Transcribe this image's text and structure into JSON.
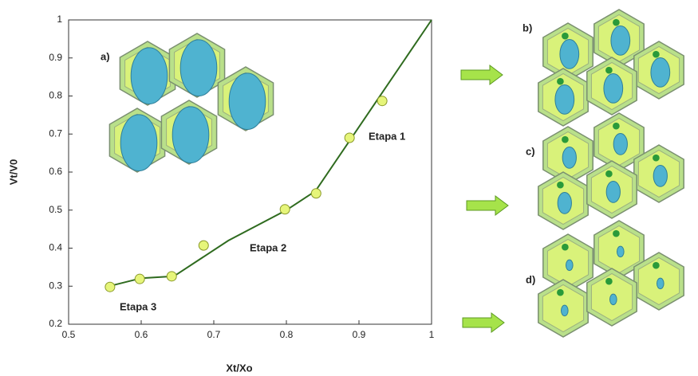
{
  "chart_data": {
    "type": "scatter",
    "x_label": "Xt/Xo",
    "y_label": "Vt/V0",
    "x": [
      0.557,
      0.598,
      0.642,
      0.686,
      0.798,
      0.841,
      0.887,
      0.932
    ],
    "y": [
      0.298,
      0.319,
      0.326,
      0.407,
      0.502,
      0.544,
      0.69,
      0.787
    ],
    "color": "#e6f57a",
    "fit": {
      "x": [
        0.56,
        0.6,
        0.645,
        0.72,
        0.8,
        0.84,
        1
      ],
      "y": [
        0.302,
        0.321,
        0.326,
        0.42,
        0.5,
        0.55,
        1
      ],
      "color": "#2f6b1f"
    },
    "xlim": [
      0.5,
      1
    ],
    "xticks": [
      0.5,
      0.6,
      0.7,
      0.8,
      0.9,
      1
    ],
    "ylim": [
      0.2,
      1
    ],
    "yticks": [
      0.2,
      0.3,
      0.4,
      0.5,
      0.6,
      0.7,
      0.8,
      0.9,
      1
    ],
    "grid": false,
    "annotations": [
      "Etapa 1",
      "Etapa 2",
      "Etapa 3"
    ],
    "panels": [
      "a)",
      "b)",
      "c)",
      "d)"
    ]
  }
}
